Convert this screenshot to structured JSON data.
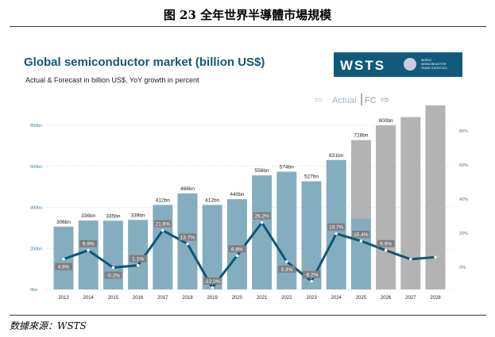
{
  "figure_title": "图 23 全年世界半導體市場規模",
  "source": "数據來源：WSTS",
  "logo": {
    "text": "WSTS",
    "subtitle": "WORLD SEMICONDUCTOR TRADE STATISTICS"
  },
  "chart_data": {
    "type": "bar",
    "title": "Global semiconductor market (billion US$)",
    "subtitle": "Actual & Forecast in billion US$, YoY growth in percent",
    "annotation_actual": "Actual",
    "annotation_fc": "FC",
    "categories": [
      "2013",
      "2014",
      "2015",
      "2016",
      "2017",
      "2018",
      "2019",
      "2020",
      "2021",
      "2022",
      "2023",
      "2024",
      "2025",
      "2026",
      "2027",
      "2028"
    ],
    "series": [
      {
        "name": "Market size (billion US$)",
        "values": [
          306,
          336,
          335,
          339,
          412,
          468,
          412,
          440,
          556,
          574,
          527,
          631,
          728,
          800,
          840,
          897
        ],
        "labels": [
          "306bn",
          "336bn",
          "335bn",
          "339bn",
          "412bn",
          "468bn",
          "412bn",
          "440bn",
          "556bn",
          "574bn",
          "527bn",
          "631bn",
          "728bn",
          "800bn",
          "",
          ""
        ],
        "forecast_from": "2025",
        "actual_portion_2025": 344
      },
      {
        "name": "YoY growth (%)",
        "values": [
          4.8,
          9.9,
          -0.2,
          1.1,
          21.6,
          13.7,
          -12.0,
          6.8,
          26.2,
          3.3,
          -8.2,
          19.7,
          15.4,
          9.9,
          4.7,
          5.9
        ],
        "labels": [
          "4.8%",
          "9.9%",
          "-0.2%",
          "1.1%",
          "21.6%",
          "13.7%",
          "-12.0%",
          "6.8%",
          "26.2%",
          "3.3%",
          "-8.2%",
          "19.7%",
          "15.4%",
          "9.9%",
          "",
          ""
        ]
      }
    ],
    "y_left": {
      "ticks": [
        "0bn",
        "200bn",
        "400bn",
        "600bn",
        "800bn"
      ],
      "values": [
        0,
        200,
        400,
        600,
        800
      ]
    },
    "y_right": {
      "ticks": [
        "0%",
        "20%",
        "40%",
        "60%",
        "80%"
      ],
      "values": [
        0,
        20,
        40,
        60,
        80
      ]
    },
    "colors": {
      "actual": "#84aebf",
      "forecast": "#b3b3b3",
      "line": "#0b5878",
      "title": "#12577a",
      "label_bg": "#7f7f7f",
      "logo_bg": "#125a7c"
    }
  }
}
